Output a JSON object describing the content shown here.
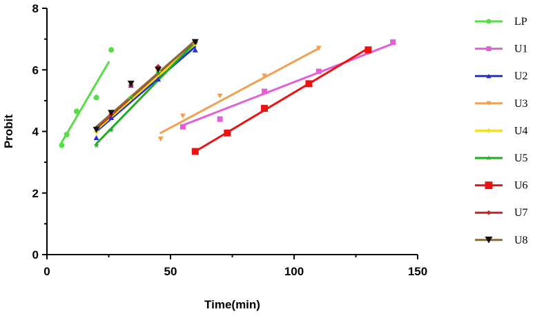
{
  "chart_data": {
    "type": "scatter",
    "title": "",
    "xlabel": "Time(min)",
    "ylabel": "Probit",
    "xlim": [
      0,
      150
    ],
    "ylim": [
      0,
      8
    ],
    "xticks": [
      "0",
      "50",
      "100",
      "150"
    ],
    "yticks": [
      "0",
      "2",
      "4",
      "6",
      "8"
    ],
    "grid": false,
    "legend_position": "right",
    "series": [
      {
        "name": "LP",
        "color": "#55dd44",
        "marker": "circle",
        "x": [
          6,
          8,
          12,
          20,
          26
        ],
        "y": [
          3.55,
          3.9,
          4.65,
          5.1,
          6.65
        ],
        "fit_x": [
          6,
          25
        ],
        "fit_y": [
          3.65,
          6.25
        ]
      },
      {
        "name": "U1",
        "color": "#e35fd6",
        "marker": "square",
        "x": [
          55,
          70,
          88,
          110,
          140
        ],
        "y": [
          4.15,
          4.4,
          5.3,
          5.95,
          6.9
        ],
        "fit_x": [
          55,
          140
        ],
        "fit_y": [
          4.2,
          6.85
        ]
      },
      {
        "name": "U2",
        "color": "#2233cc",
        "marker": "triangle-up",
        "x": [
          20,
          26,
          34,
          45,
          60
        ],
        "y": [
          3.8,
          4.45,
          5.5,
          5.7,
          6.65
        ],
        "fit_x": [
          20,
          60
        ],
        "fit_y": [
          4.0,
          6.75
        ]
      },
      {
        "name": "U3",
        "color": "#f0a050",
        "marker": "triangle-down",
        "x": [
          46,
          55,
          70,
          88,
          110
        ],
        "y": [
          3.75,
          4.5,
          5.15,
          5.8,
          6.7
        ],
        "fit_x": [
          46,
          110
        ],
        "fit_y": [
          3.95,
          6.7
        ]
      },
      {
        "name": "U4",
        "color": "#f0e020",
        "marker": "diamond",
        "x": [
          20,
          26,
          34,
          45,
          60
        ],
        "y": [
          4.0,
          4.6,
          5.1,
          5.95,
          6.85
        ],
        "fit_x": [
          20,
          60
        ],
        "fit_y": [
          4.05,
          6.85
        ]
      },
      {
        "name": "U5",
        "color": "#22aa22",
        "marker": "star",
        "x": [
          20,
          26,
          34,
          45,
          60
        ],
        "y": [
          3.55,
          4.05,
          5.1,
          5.9,
          6.9
        ],
        "fit_x": [
          20,
          60
        ],
        "fit_y": [
          3.6,
          6.9
        ]
      },
      {
        "name": "U6",
        "color": "#ee1111",
        "marker": "square",
        "x": [
          60,
          73,
          88,
          106,
          130
        ],
        "y": [
          3.35,
          3.95,
          4.75,
          5.55,
          6.65
        ],
        "fit_x": [
          60,
          130
        ],
        "fit_y": [
          3.35,
          6.7
        ]
      },
      {
        "name": "U7",
        "color": "#cc2222",
        "marker": "diamond",
        "x": [
          20,
          26,
          34,
          45,
          60
        ],
        "y": [
          4.1,
          4.55,
          5.5,
          6.1,
          6.9
        ],
        "fit_x": [
          20,
          60
        ],
        "fit_y": [
          4.1,
          6.95
        ]
      },
      {
        "name": "U8",
        "color": "#111111",
        "linecolor": "#8b6a3a",
        "marker": "triangle-down",
        "x": [
          20,
          26,
          34,
          45,
          60
        ],
        "y": [
          4.05,
          4.6,
          5.55,
          6.0,
          6.9
        ],
        "fit_x": [
          20,
          60
        ],
        "fit_y": [
          4.15,
          6.95
        ]
      }
    ]
  }
}
